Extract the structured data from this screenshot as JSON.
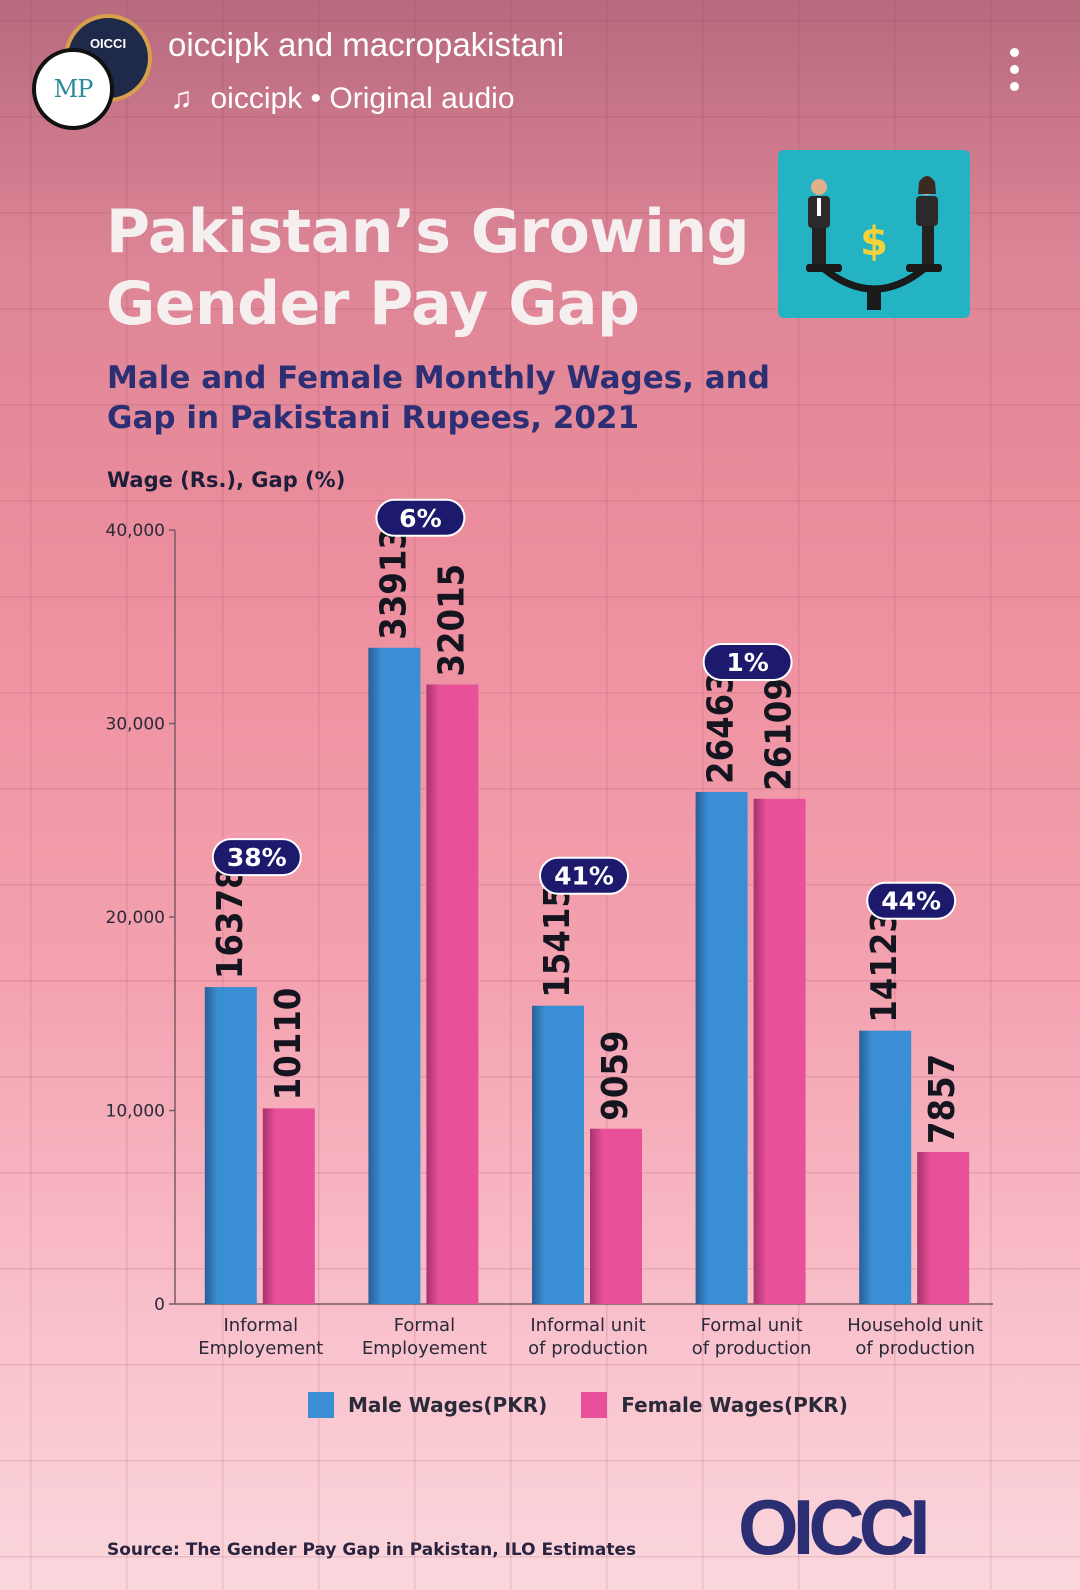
{
  "post": {
    "author_line_1": "oiccipk",
    "author_and": " and ",
    "author_line_2": "macropakistani",
    "audio_account": "oiccipk",
    "audio_sep": " • ",
    "audio_label": "Original audio",
    "avatar_back_text": "OICCI",
    "avatar_front_text": "MP"
  },
  "infographic": {
    "title_line_1": "Pakistan’s Growing",
    "title_line_2": "Gender Pay Gap",
    "subtitle": "Male and Female Monthly Wages, and Gap in Pakistani Rupees, 2021",
    "axis_title": "Wage (Rs.), Gap (%)",
    "source": "Source: The Gender Pay Gap in Pakistan, ILO Estimates",
    "logo_text": "OICCI",
    "illustration_icon": "gender-pay-balance-icon"
  },
  "chart_data": {
    "type": "bar",
    "categories": [
      [
        "Informal",
        "Employement"
      ],
      [
        "Formal",
        "Employement"
      ],
      [
        "Informal unit",
        "of production"
      ],
      [
        "Formal unit",
        "of production"
      ],
      [
        "Household unit",
        "of production"
      ]
    ],
    "series": [
      {
        "name": "Male Wages(PKR)",
        "color": "#3a8fd4",
        "values": [
          16378,
          33913,
          15415,
          26463,
          14123
        ]
      },
      {
        "name": "Female Wages(PKR)",
        "color": "#e8509a",
        "values": [
          10110,
          32015,
          9059,
          26109,
          7857
        ]
      }
    ],
    "gap_labels": [
      "38%",
      "6%",
      "41%",
      "1%",
      "44%"
    ],
    "ylim": [
      0,
      40000
    ],
    "yticks": [
      "0",
      "10,000",
      "20,000",
      "30,000",
      "40,000"
    ],
    "ytick_values": [
      0,
      10000,
      20000,
      30000,
      40000
    ],
    "ylabel": "Wage (Rs.), Gap (%)",
    "legend_position": "bottom"
  }
}
